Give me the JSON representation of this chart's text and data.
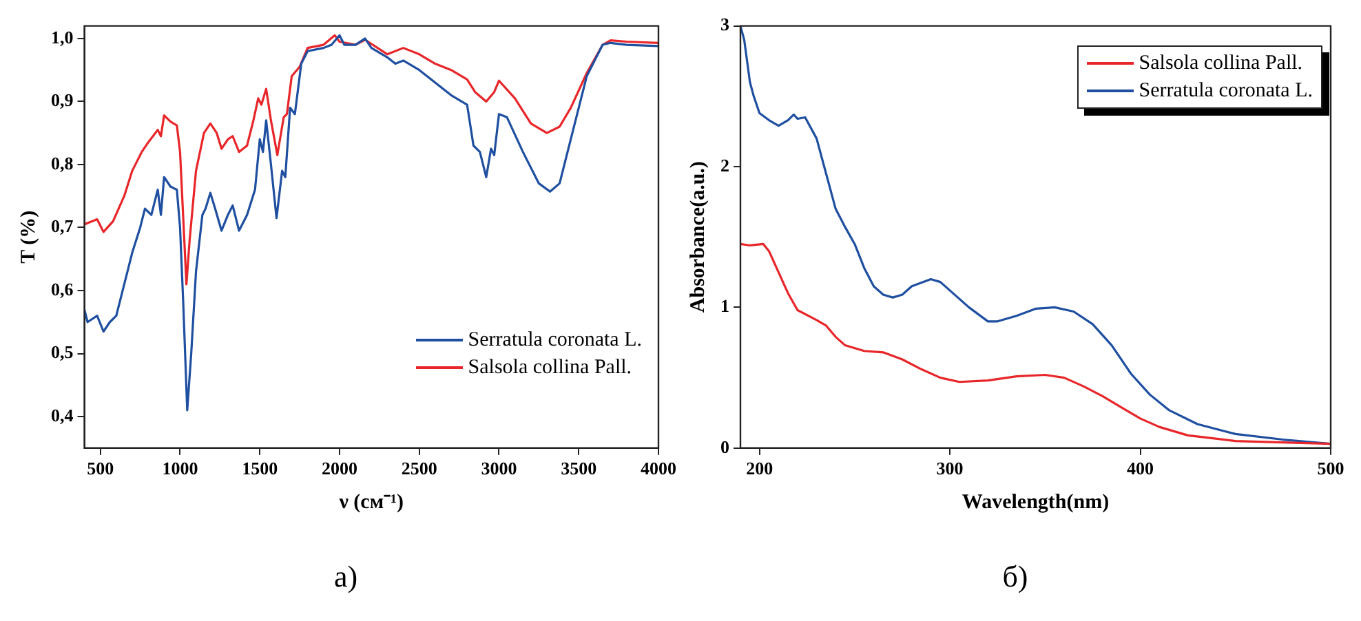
{
  "chart_data": [
    {
      "type": "line",
      "xlabel": "ν (см⁻¹)",
      "ylabel": "T (%)",
      "annotations": [
        "a)"
      ],
      "legend": "bottom right",
      "xlim": [
        400,
        4000
      ],
      "xticks": [
        500,
        1000,
        1500,
        2000,
        2500,
        3000,
        3500,
        4000
      ],
      "ylim": [
        0.35,
        1.02
      ],
      "yticks": [
        {
          "value": 0.4,
          "label": "0,4"
        },
        {
          "value": 0.5,
          "label": "0,5"
        },
        {
          "value": 0.6,
          "label": "0,6"
        },
        {
          "value": 0.7,
          "label": "0,7"
        },
        {
          "value": 0.8,
          "label": "0,8"
        },
        {
          "value": 0.9,
          "label": "0,9"
        },
        {
          "value": 1.0,
          "label": "1,0"
        }
      ],
      "series": [
        {
          "name": "Serratula coronata L.",
          "color": "#1f4fa0",
          "x": [
            400,
            420,
            480,
            520,
            560,
            600,
            650,
            700,
            750,
            780,
            820,
            860,
            880,
            900,
            940,
            980,
            1000,
            1020,
            1045,
            1070,
            1100,
            1140,
            1160,
            1190,
            1220,
            1260,
            1300,
            1330,
            1370,
            1420,
            1470,
            1500,
            1520,
            1540,
            1570,
            1605,
            1640,
            1660,
            1690,
            1720,
            1760,
            1800,
            1900,
            1950,
            2000,
            2030,
            2100,
            2160,
            2200,
            2300,
            2350,
            2400,
            2500,
            2600,
            2700,
            2800,
            2840,
            2880,
            2920,
            2950,
            2970,
            3000,
            3050,
            3150,
            3250,
            3320,
            3380,
            3450,
            3550,
            3650,
            3700,
            3800,
            4000
          ],
          "values": [
            0.57,
            0.55,
            0.56,
            0.535,
            0.55,
            0.56,
            0.61,
            0.66,
            0.7,
            0.73,
            0.72,
            0.76,
            0.72,
            0.78,
            0.765,
            0.76,
            0.7,
            0.58,
            0.41,
            0.5,
            0.63,
            0.72,
            0.73,
            0.755,
            0.73,
            0.695,
            0.72,
            0.735,
            0.695,
            0.72,
            0.76,
            0.84,
            0.82,
            0.87,
            0.8,
            0.715,
            0.79,
            0.78,
            0.89,
            0.88,
            0.96,
            0.98,
            0.985,
            0.99,
            1.005,
            0.99,
            0.99,
            1.0,
            0.985,
            0.97,
            0.96,
            0.965,
            0.95,
            0.93,
            0.91,
            0.895,
            0.83,
            0.82,
            0.78,
            0.825,
            0.815,
            0.88,
            0.875,
            0.82,
            0.77,
            0.757,
            0.77,
            0.84,
            0.94,
            0.99,
            0.993,
            0.99,
            0.988
          ]
        },
        {
          "name": "Salsola collina Pall.",
          "color": "#e8262a",
          "x": [
            400,
            450,
            480,
            520,
            580,
            650,
            700,
            760,
            800,
            860,
            880,
            900,
            940,
            980,
            1000,
            1040,
            1060,
            1100,
            1150,
            1190,
            1230,
            1260,
            1300,
            1330,
            1370,
            1420,
            1460,
            1490,
            1510,
            1540,
            1570,
            1610,
            1650,
            1670,
            1700,
            1750,
            1800,
            1900,
            1970,
            2000,
            2100,
            2160,
            2300,
            2400,
            2500,
            2600,
            2700,
            2800,
            2850,
            2920,
            2970,
            3000,
            3100,
            3200,
            3300,
            3380,
            3450,
            3550,
            3650,
            3700,
            3800,
            4000
          ],
          "values": [
            0.705,
            0.71,
            0.713,
            0.693,
            0.71,
            0.75,
            0.79,
            0.82,
            0.835,
            0.855,
            0.845,
            0.878,
            0.868,
            0.862,
            0.82,
            0.61,
            0.68,
            0.79,
            0.85,
            0.865,
            0.85,
            0.825,
            0.84,
            0.845,
            0.82,
            0.83,
            0.87,
            0.905,
            0.895,
            0.92,
            0.87,
            0.815,
            0.875,
            0.88,
            0.94,
            0.955,
            0.985,
            0.99,
            1.005,
            0.995,
            0.99,
            0.998,
            0.975,
            0.985,
            0.975,
            0.96,
            0.95,
            0.935,
            0.915,
            0.9,
            0.915,
            0.933,
            0.905,
            0.865,
            0.85,
            0.86,
            0.89,
            0.945,
            0.99,
            0.997,
            0.995,
            0.993
          ]
        }
      ]
    },
    {
      "type": "line",
      "xlabel": "Wavelength(nm)",
      "ylabel": "Absorbance(a.u.)",
      "annotations": [
        "б)"
      ],
      "legend": "top right",
      "xlim": [
        190,
        500
      ],
      "xticks": [
        200,
        300,
        400,
        500
      ],
      "ylim": [
        0,
        3
      ],
      "yticks": [
        0,
        1,
        2,
        3
      ],
      "series": [
        {
          "name": "Salsola collina Pall.",
          "color": "#e8262a",
          "x": [
            190,
            195,
            202,
            205,
            210,
            215,
            220,
            230,
            235,
            240,
            245,
            255,
            265,
            275,
            285,
            295,
            305,
            320,
            335,
            350,
            360,
            370,
            380,
            390,
            400,
            410,
            425,
            450,
            475,
            500
          ],
          "values": [
            1.45,
            1.44,
            1.45,
            1.4,
            1.25,
            1.1,
            0.98,
            0.91,
            0.87,
            0.79,
            0.73,
            0.69,
            0.68,
            0.63,
            0.56,
            0.5,
            0.47,
            0.48,
            0.51,
            0.52,
            0.5,
            0.44,
            0.37,
            0.29,
            0.21,
            0.15,
            0.09,
            0.05,
            0.04,
            0.03
          ]
        },
        {
          "name": "Serratula coronata L.",
          "color": "#1f4fa0",
          "x": [
            190,
            192,
            195,
            197,
            200,
            205,
            210,
            215,
            218,
            220,
            224,
            230,
            235,
            240,
            245,
            250,
            255,
            260,
            265,
            270,
            275,
            280,
            290,
            295,
            300,
            310,
            320,
            325,
            335,
            345,
            355,
            365,
            375,
            385,
            395,
            405,
            415,
            430,
            450,
            475,
            500
          ],
          "values": [
            3.0,
            2.9,
            2.6,
            2.5,
            2.38,
            2.33,
            2.29,
            2.33,
            2.37,
            2.34,
            2.35,
            2.2,
            1.95,
            1.7,
            1.57,
            1.45,
            1.28,
            1.15,
            1.09,
            1.07,
            1.09,
            1.15,
            1.2,
            1.18,
            1.12,
            1.0,
            0.9,
            0.9,
            0.94,
            0.99,
            1.0,
            0.97,
            0.88,
            0.73,
            0.53,
            0.38,
            0.27,
            0.17,
            0.1,
            0.06,
            0.03
          ]
        }
      ]
    }
  ]
}
